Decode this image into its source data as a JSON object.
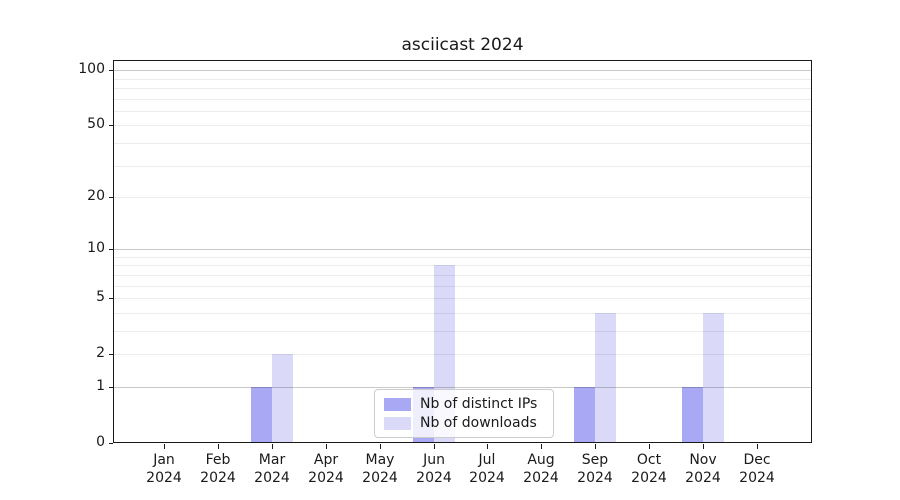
{
  "title": "asciicast 2024",
  "chart_data": {
    "type": "bar",
    "title": "asciicast 2024",
    "xlabel": "",
    "ylabel": "",
    "yscale": "log1p",
    "ylim": [
      0,
      111
    ],
    "grid": true,
    "categories": [
      "Jan 2024",
      "Feb 2024",
      "Mar 2024",
      "Apr 2024",
      "May 2024",
      "Jun 2024",
      "Jul 2024",
      "Aug 2024",
      "Sep 2024",
      "Oct 2024",
      "Nov 2024",
      "Dec 2024"
    ],
    "series": [
      {
        "name": "Nb of distinct IPs",
        "color": "#a8a8f4",
        "values": [
          0,
          0,
          1,
          0,
          0,
          1,
          0,
          0,
          1,
          0,
          1,
          0
        ]
      },
      {
        "name": "Nb of downloads",
        "color": "#dadaf8",
        "values": [
          0,
          0,
          2,
          0,
          0,
          8,
          0,
          0,
          4,
          0,
          4,
          0
        ]
      }
    ],
    "yticks": [
      0,
      1,
      2,
      5,
      10,
      20,
      50,
      100
    ],
    "grid_major_values": [
      1,
      10,
      100
    ],
    "grid_minor_values": [
      2,
      3,
      4,
      5,
      6,
      7,
      8,
      9,
      20,
      30,
      40,
      50,
      60,
      70,
      80,
      90
    ],
    "legend": {
      "position": "lower center",
      "entries": [
        "Nb of distinct IPs",
        "Nb of downloads"
      ]
    }
  },
  "colors": {
    "background": "#ffffff",
    "axis": "#1a1a1a",
    "grid_major": "rgba(0,0,0,0.21)",
    "grid_minor": "rgba(0,0,0,0.075)",
    "legend_border": "#cccccc"
  }
}
